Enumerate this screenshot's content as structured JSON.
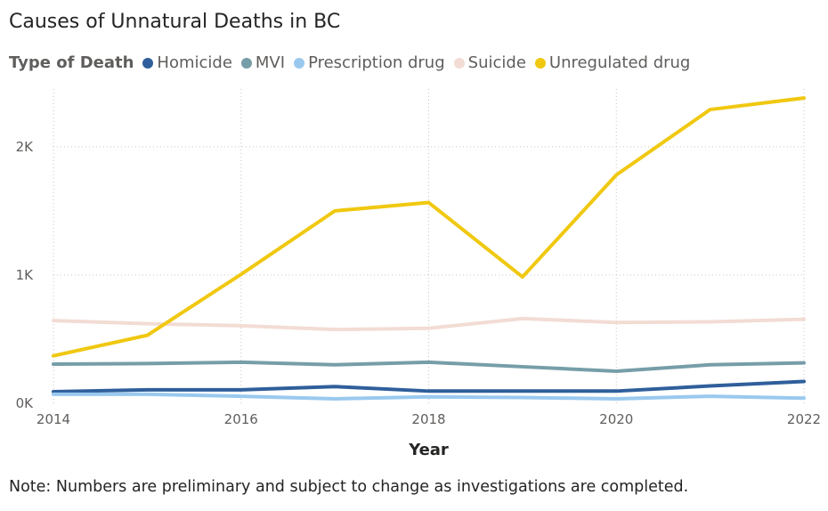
{
  "chart_data": {
    "type": "line",
    "title": "Causes of Unnatural Deaths in BC",
    "legend_title": "Type of Death",
    "xlabel": "Year",
    "ylabel": "",
    "x": [
      2014,
      2015,
      2016,
      2017,
      2018,
      2019,
      2020,
      2021,
      2022
    ],
    "x_ticks": [
      "2014",
      "2016",
      "2018",
      "2020",
      "2022"
    ],
    "y_ticks": [
      {
        "value": 0,
        "label": "0K"
      },
      {
        "value": 1000,
        "label": "1K"
      },
      {
        "value": 2000,
        "label": "2K"
      }
    ],
    "ylim": [
      0,
      2450
    ],
    "xlim": [
      2014,
      2022
    ],
    "grid": true,
    "series": [
      {
        "name": "Homicide",
        "color": "#2f5f9b",
        "values": [
          90,
          105,
          105,
          130,
          95,
          95,
          95,
          135,
          170
        ]
      },
      {
        "name": "MVI",
        "color": "#769ea8",
        "values": [
          305,
          310,
          320,
          300,
          320,
          285,
          250,
          300,
          315
        ]
      },
      {
        "name": "Prescription drug",
        "color": "#9ac9ef",
        "values": [
          70,
          70,
          55,
          35,
          50,
          45,
          35,
          55,
          40
        ]
      },
      {
        "name": "Suicide",
        "color": "#f2dcd4",
        "values": [
          645,
          620,
          605,
          575,
          585,
          660,
          630,
          635,
          655
        ]
      },
      {
        "name": "Unregulated drug",
        "color": "#f0c810",
        "values": [
          370,
          530,
          1005,
          1500,
          1565,
          985,
          1780,
          2290,
          2380
        ]
      }
    ]
  },
  "note": "Note: Numbers are preliminary and subject to change as investigations are completed."
}
